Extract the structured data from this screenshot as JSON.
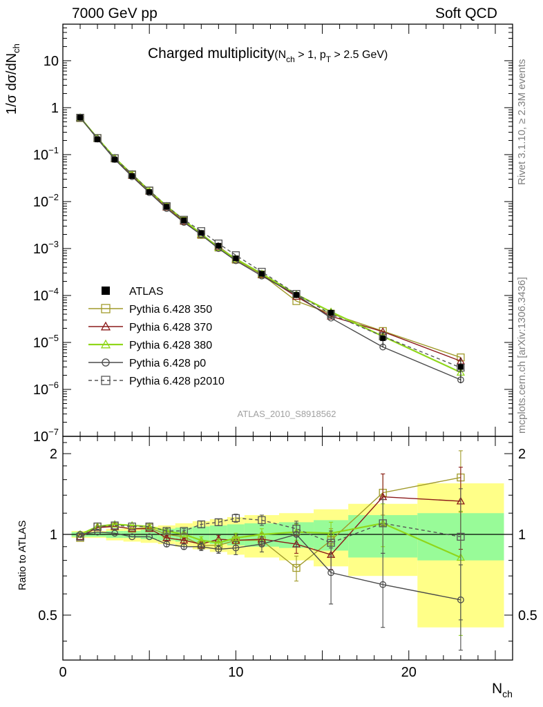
{
  "header": {
    "energy_label": "7000 GeV pp",
    "process_label": "Soft QCD"
  },
  "side_labels": {
    "rivet": "Rivet 3.1.10, ≥ 2.3M events",
    "source": "mcplots.cern.ch [arXiv:1306.3436]"
  },
  "analysis_id": "ATLAS_2010_S8918562",
  "chart_data": [
    {
      "type": "line",
      "panel": "main",
      "title": "Charged multiplicity",
      "title_condition": {
        "a": "(N",
        "a_sub": "ch",
        "b": " > 1, p",
        "b_sub": "T",
        "c": " > 2.5 GeV)"
      },
      "xlabel": "N",
      "xlabel_sub": "ch",
      "ylabel": "1/σ dσ/dN",
      "ylabel_sub": "ch",
      "yscale": "log",
      "xlim": [
        0,
        26
      ],
      "ylim": [
        1e-07,
        60
      ],
      "yticks": [
        {
          "v": 10.0,
          "base": "10",
          "exp": ""
        },
        {
          "v": 1,
          "base": "1",
          "exp": ""
        },
        {
          "v": 0.1,
          "base": "10",
          "exp": "−1"
        },
        {
          "v": 0.01,
          "base": "10",
          "exp": "−2"
        },
        {
          "v": 0.001,
          "base": "10",
          "exp": "−3"
        },
        {
          "v": 0.0001,
          "base": "10",
          "exp": "−4"
        },
        {
          "v": 1e-05,
          "base": "10",
          "exp": "−5"
        },
        {
          "v": 1e-06,
          "base": "10",
          "exp": "−6"
        },
        {
          "v": 1e-07,
          "base": "10",
          "exp": "−7"
        }
      ],
      "legend_position": "lower-left",
      "data": {
        "name": "ATLAS",
        "color": "#000000",
        "marker": "filled-square",
        "x": [
          1,
          2,
          3,
          4,
          5,
          6,
          7,
          8,
          9,
          10,
          11.5,
          13.5,
          15.5,
          18.5,
          23
        ],
        "y": [
          0.62,
          0.21,
          0.078,
          0.035,
          0.016,
          0.0078,
          0.004,
          0.00215,
          0.00115,
          0.00062,
          0.00029,
          0.000103,
          4.3e-05,
          1.23e-05,
          3e-06
        ]
      },
      "series": [
        {
          "name": "Pythia 6.428 350",
          "color": "#a09a2a",
          "marker": "open-square",
          "dash": "",
          "y": [
            0.6,
            0.225,
            0.083,
            0.037,
            0.017,
            0.0078,
            0.0039,
            0.00195,
            0.00105,
            0.00058,
            0.00028,
            7.6e-05,
            4.1e-05,
            1.75e-05,
            4.8e-06
          ]
        },
        {
          "name": "Pythia 6.428 370",
          "color": "#8b1a1a",
          "marker": "open-triangle",
          "dash": "",
          "y": [
            0.61,
            0.22,
            0.082,
            0.036,
            0.0165,
            0.0076,
            0.0038,
            0.00198,
            0.0011,
            0.00059,
            0.00028,
            9.5e-05,
            3.6e-05,
            1.7e-05,
            4e-06
          ]
        },
        {
          "name": "Pythia 6.428 380",
          "color": "#8fd61a",
          "marker": "open-triangle",
          "dash": "",
          "y": [
            0.62,
            0.225,
            0.085,
            0.038,
            0.017,
            0.008,
            0.004,
            0.00205,
            0.00105,
            0.0006,
            0.00029,
            0.000105,
            4.5e-05,
            1.35e-05,
            2.3e-06
          ]
        },
        {
          "name": "Pythia 6.428 p0",
          "color": "#4a4a4a",
          "marker": "open-circle",
          "dash": "",
          "y": [
            0.62,
            0.215,
            0.079,
            0.034,
            0.0155,
            0.0071,
            0.0036,
            0.00195,
            0.001,
            0.00055,
            0.00026,
            0.000103,
            3.3e-05,
            8e-06,
            1.6e-06
          ]
        },
        {
          "name": "Pythia 6.428 p2010",
          "color": "#555555",
          "marker": "open-square",
          "dash": "5,4",
          "y": [
            0.61,
            0.225,
            0.084,
            0.038,
            0.0172,
            0.008,
            0.0041,
            0.00235,
            0.00128,
            0.00072,
            0.00032,
            0.000108,
            4e-05,
            1.35e-05,
            2.9e-06
          ]
        }
      ]
    },
    {
      "type": "line",
      "panel": "ratio",
      "ylabel": "Ratio to ATLAS",
      "xlabel": "N",
      "xlabel_sub": "ch",
      "xlim": [
        0,
        26
      ],
      "ylim": [
        0.34,
        2.32
      ],
      "xticks": [
        0,
        10,
        20
      ],
      "yticks": [
        0.5,
        1,
        2
      ],
      "x": [
        1,
        2,
        3,
        4,
        5,
        6,
        7,
        8,
        9,
        10,
        11.5,
        13.5,
        15.5,
        18.5,
        23
      ],
      "bins": [
        [
          0.5,
          1.5
        ],
        [
          1.5,
          2.5
        ],
        [
          2.5,
          3.5
        ],
        [
          3.5,
          4.5
        ],
        [
          4.5,
          5.5
        ],
        [
          5.5,
          6.5
        ],
        [
          6.5,
          7.5
        ],
        [
          7.5,
          8.5
        ],
        [
          8.5,
          9.5
        ],
        [
          9.5,
          10.5
        ],
        [
          10.5,
          12.5
        ],
        [
          12.5,
          14.5
        ],
        [
          14.5,
          16.5
        ],
        [
          16.5,
          20.5
        ],
        [
          20.5,
          25.5
        ]
      ],
      "band_inner": [
        0.02,
        0.02,
        0.03,
        0.03,
        0.04,
        0.05,
        0.06,
        0.07,
        0.08,
        0.09,
        0.1,
        0.11,
        0.13,
        0.18,
        0.2
      ],
      "band_outer": [
        0.03,
        0.03,
        0.05,
        0.06,
        0.07,
        0.08,
        0.1,
        0.12,
        0.14,
        0.16,
        0.18,
        0.2,
        0.24,
        0.3,
        0.55
      ],
      "band_inner_color": "#98fb98",
      "band_outer_color": "#ffff88",
      "series": [
        {
          "name": "Pythia 6.428 350",
          "color": "#a09a2a",
          "marker": "open-square",
          "dash": "",
          "y": [
            0.97,
            1.07,
            1.07,
            1.05,
            1.06,
            1.0,
            0.98,
            0.91,
            0.91,
            0.95,
            0.95,
            0.75,
            0.95,
            1.43,
            1.63
          ],
          "err": [
            0.01,
            0.01,
            0.01,
            0.01,
            0.01,
            0.02,
            0.02,
            0.03,
            0.03,
            0.04,
            0.05,
            0.08,
            0.1,
            0.25,
            0.42
          ]
        },
        {
          "name": "Pythia 6.428 370",
          "color": "#8b1a1a",
          "marker": "open-triangle",
          "dash": "",
          "y": [
            0.98,
            1.06,
            1.07,
            1.05,
            1.05,
            0.97,
            0.95,
            0.92,
            0.96,
            0.95,
            0.96,
            0.92,
            0.84,
            1.38,
            1.33
          ],
          "err": [
            0.01,
            0.01,
            0.01,
            0.01,
            0.01,
            0.02,
            0.02,
            0.03,
            0.03,
            0.04,
            0.05,
            0.07,
            0.1,
            0.3,
            0.45
          ]
        },
        {
          "name": "Pythia 6.428 380",
          "color": "#8fd61a",
          "marker": "open-triangle",
          "dash": "",
          "y": [
            1.0,
            1.07,
            1.09,
            1.08,
            1.07,
            1.03,
            1.0,
            0.95,
            0.93,
            0.97,
            1.0,
            1.02,
            1.01,
            1.1,
            0.82
          ],
          "err": [
            0.01,
            0.01,
            0.01,
            0.01,
            0.01,
            0.02,
            0.02,
            0.03,
            0.03,
            0.04,
            0.05,
            0.07,
            0.1,
            0.2,
            0.4
          ]
        },
        {
          "name": "Pythia 6.428 p0",
          "color": "#4a4a4a",
          "marker": "open-circle",
          "dash": "",
          "y": [
            1.0,
            1.02,
            1.01,
            0.98,
            0.98,
            0.92,
            0.9,
            0.9,
            0.88,
            0.89,
            0.92,
            1.0,
            0.72,
            0.65,
            0.57
          ],
          "err": [
            0.01,
            0.01,
            0.01,
            0.01,
            0.01,
            0.02,
            0.02,
            0.03,
            0.03,
            0.05,
            0.06,
            0.1,
            0.17,
            0.2,
            0.2
          ]
        },
        {
          "name": "Pythia 6.428 p2010",
          "color": "#555555",
          "marker": "open-square",
          "dash": "5,4",
          "y": [
            0.98,
            1.07,
            1.08,
            1.07,
            1.07,
            1.03,
            1.03,
            1.09,
            1.11,
            1.15,
            1.13,
            1.05,
            0.93,
            1.1,
            0.98
          ],
          "err": [
            0.01,
            0.01,
            0.01,
            0.01,
            0.01,
            0.02,
            0.02,
            0.03,
            0.03,
            0.04,
            0.05,
            0.07,
            0.1,
            0.25,
            0.5
          ]
        }
      ]
    }
  ]
}
